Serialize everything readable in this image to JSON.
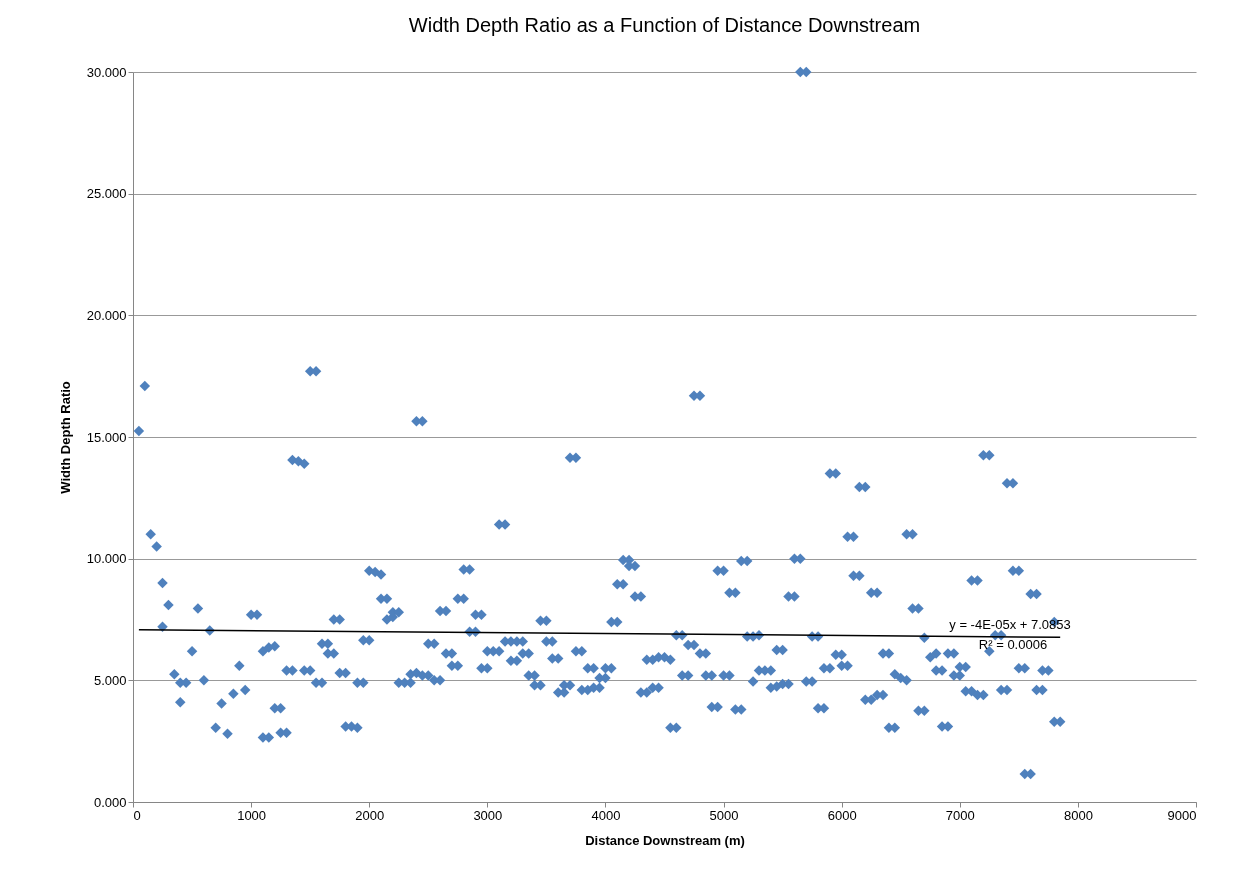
{
  "chart_data": {
    "type": "scatter",
    "title": "Width Depth Ratio as a Function of Distance Downstream",
    "xlabel": "Distance Downstream (m)",
    "ylabel": "Width Depth Ratio",
    "xlim": [
      0,
      9000
    ],
    "xticks": [
      0,
      1000,
      2000,
      3000,
      4000,
      5000,
      6000,
      7000,
      8000,
      9000
    ],
    "ylim": [
      0,
      30
    ],
    "yticks": [
      {
        "value": 0,
        "label": "0.000"
      },
      {
        "value": 5,
        "label": "5.000"
      },
      {
        "value": 10,
        "label": "10.000"
      },
      {
        "value": 15,
        "label": "15.000"
      },
      {
        "value": 20,
        "label": "20.000"
      },
      {
        "value": 25,
        "label": "25.000"
      },
      {
        "value": 30,
        "label": "30.000"
      }
    ],
    "grid": "y",
    "marker": "diamond",
    "annotations": [
      "y = -4E-05x + 7.0853",
      "R² = 0.0006"
    ],
    "series": [
      {
        "color": "#4f81bd",
        "x": [
          50,
          100,
          150,
          200,
          250,
          250,
          300,
          350,
          400,
          400,
          450,
          500,
          550,
          600,
          650,
          700,
          750,
          800,
          850,
          900,
          950,
          1000,
          1050,
          1100,
          1100,
          1150,
          1150,
          1200,
          1200,
          1250,
          1250,
          1300,
          1300,
          1350,
          1350,
          1400,
          1450,
          1450,
          1500,
          1500,
          1550,
          1550,
          1600,
          1600,
          1650,
          1650,
          1700,
          1700,
          1750,
          1750,
          1800,
          1800,
          1850,
          1900,
          1900,
          1950,
          1950,
          2000,
          2000,
          2050,
          2100,
          2100,
          2150,
          2150,
          2200,
          2200,
          2250,
          2250,
          2300,
          2350,
          2350,
          2400,
          2400,
          2450,
          2450,
          2500,
          2500,
          2550,
          2550,
          2600,
          2600,
          2650,
          2650,
          2700,
          2700,
          2750,
          2750,
          2800,
          2800,
          2850,
          2850,
          2900,
          2900,
          2950,
          2950,
          3000,
          3000,
          3050,
          3100,
          3100,
          3150,
          3150,
          3200,
          3200,
          3250,
          3250,
          3300,
          3300,
          3350,
          3350,
          3400,
          3400,
          3450,
          3450,
          3500,
          3500,
          3550,
          3550,
          3600,
          3600,
          3650,
          3650,
          3700,
          3700,
          3750,
          3750,
          3800,
          3800,
          3850,
          3850,
          3900,
          3900,
          3950,
          3950,
          4000,
          4000,
          4050,
          4050,
          4100,
          4100,
          4150,
          4150,
          4200,
          4200,
          4250,
          4250,
          4300,
          4300,
          4350,
          4350,
          4400,
          4400,
          4450,
          4450,
          4500,
          4550,
          4550,
          4600,
          4600,
          4650,
          4650,
          4700,
          4700,
          4750,
          4750,
          4800,
          4800,
          4850,
          4850,
          4900,
          4900,
          4950,
          4950,
          5000,
          5000,
          5050,
          5050,
          5100,
          5100,
          5150,
          5150,
          5200,
          5200,
          5250,
          5250,
          5300,
          5300,
          5350,
          5400,
          5400,
          5450,
          5450,
          5500,
          5500,
          5550,
          5550,
          5600,
          5600,
          5650,
          5650,
          5700,
          5700,
          5750,
          5750,
          5800,
          5800,
          5850,
          5850,
          5900,
          5900,
          5950,
          5950,
          6000,
          6000,
          6050,
          6050,
          6100,
          6100,
          6150,
          6150,
          6200,
          6200,
          6250,
          6250,
          6300,
          6300,
          6350,
          6350,
          6400,
          6400,
          6450,
          6450,
          6500,
          6550,
          6550,
          6600,
          6600,
          6650,
          6650,
          6700,
          6700,
          6750,
          6800,
          6800,
          6850,
          6850,
          6900,
          6900,
          6950,
          6950,
          7000,
          7000,
          7050,
          7050,
          7100,
          7100,
          7150,
          7150,
          7200,
          7200,
          7250,
          7250,
          7300,
          7350,
          7350,
          7400,
          7400,
          7450,
          7450,
          7500,
          7500,
          7550,
          7550,
          7600,
          7600,
          7650,
          7650,
          7700,
          7700,
          7750,
          7800,
          7800,
          7850
        ],
        "values": [
          15.25,
          17.1,
          11.0,
          10.5,
          9.0,
          7.2,
          8.1,
          5.25,
          4.9,
          4.1,
          4.9,
          6.2,
          7.95,
          5.0,
          7.05,
          3.05,
          4.05,
          2.8,
          4.45,
          5.6,
          4.6,
          7.7,
          7.7,
          2.65,
          6.2,
          2.65,
          6.35,
          6.4,
          3.85,
          3.85,
          2.85,
          2.85,
          5.4,
          5.4,
          14.05,
          14.0,
          13.9,
          5.4,
          5.4,
          17.7,
          17.7,
          4.9,
          4.9,
          6.5,
          6.5,
          6.1,
          6.1,
          7.5,
          7.5,
          5.3,
          5.3,
          3.1,
          3.1,
          3.05,
          4.9,
          4.9,
          6.65,
          6.65,
          9.5,
          9.45,
          9.35,
          8.35,
          8.35,
          7.5,
          7.6,
          7.8,
          7.8,
          4.9,
          4.9,
          4.9,
          5.25,
          5.3,
          15.65,
          15.65,
          5.2,
          5.2,
          6.5,
          6.5,
          5.0,
          5.0,
          7.85,
          7.85,
          6.1,
          6.1,
          5.6,
          5.6,
          8.35,
          8.35,
          9.55,
          9.55,
          7.0,
          7.0,
          7.7,
          7.7,
          5.5,
          5.5,
          6.2,
          6.2,
          6.2,
          11.4,
          11.4,
          6.6,
          6.6,
          5.8,
          5.8,
          6.6,
          6.6,
          6.1,
          6.1,
          5.2,
          5.2,
          4.8,
          4.8,
          7.45,
          7.45,
          6.6,
          6.6,
          5.9,
          5.9,
          4.5,
          4.5,
          4.8,
          4.8,
          14.15,
          14.15,
          6.2,
          6.2,
          4.6,
          4.6,
          5.5,
          5.5,
          4.7,
          4.7,
          5.1,
          5.1,
          5.5,
          5.5,
          7.4,
          7.4,
          8.95,
          8.95,
          9.95,
          9.95,
          9.7,
          9.7,
          8.45,
          8.45,
          4.5,
          4.5,
          5.85,
          5.85,
          4.7,
          4.7,
          5.95,
          5.95,
          5.85,
          3.05,
          3.05,
          6.85,
          6.85,
          5.2,
          5.2,
          6.45,
          6.45,
          16.7,
          16.7,
          6.1,
          6.1,
          5.2,
          5.2,
          3.9,
          3.9,
          9.5,
          9.5,
          5.2,
          5.2,
          8.6,
          8.6,
          3.8,
          3.8,
          9.9,
          9.9,
          6.8,
          6.8,
          4.95,
          6.85,
          5.4,
          5.4,
          5.4,
          4.7,
          4.75,
          6.25,
          6.25,
          4.85,
          4.85,
          8.45,
          8.45,
          10.0,
          10.0,
          30.0,
          30.0,
          4.95,
          4.95,
          6.8,
          6.8,
          3.85,
          3.85,
          5.5,
          5.5,
          13.5,
          13.5,
          6.05,
          6.05,
          5.6,
          5.6,
          10.9,
          10.9,
          9.3,
          9.3,
          12.95,
          12.95,
          4.2,
          4.2,
          8.6,
          8.6,
          4.4,
          4.4,
          6.1,
          6.1,
          3.05,
          3.05,
          5.25,
          5.1,
          5.0,
          11.0,
          11.0,
          7.95,
          7.95,
          3.75,
          3.75,
          6.75,
          5.95,
          6.1,
          5.4,
          5.4,
          3.1,
          3.1,
          6.1,
          6.1,
          5.2,
          5.2,
          5.55,
          5.55,
          4.55,
          4.55,
          9.1,
          9.1,
          4.4,
          4.4,
          14.25,
          14.25,
          6.2,
          6.85,
          6.85,
          4.6,
          4.6,
          13.1,
          13.1,
          9.5,
          9.5,
          5.5,
          5.5,
          1.15,
          1.15,
          8.55,
          8.55,
          4.6,
          4.6,
          5.4,
          5.4,
          7.4,
          3.3,
          3.3
        ]
      },
      {
        "type": "line",
        "color": "#000000",
        "line_style": "solid",
        "marker": "none",
        "x": [
          50,
          7850
        ],
        "values": [
          7.08,
          6.77
        ]
      }
    ]
  }
}
